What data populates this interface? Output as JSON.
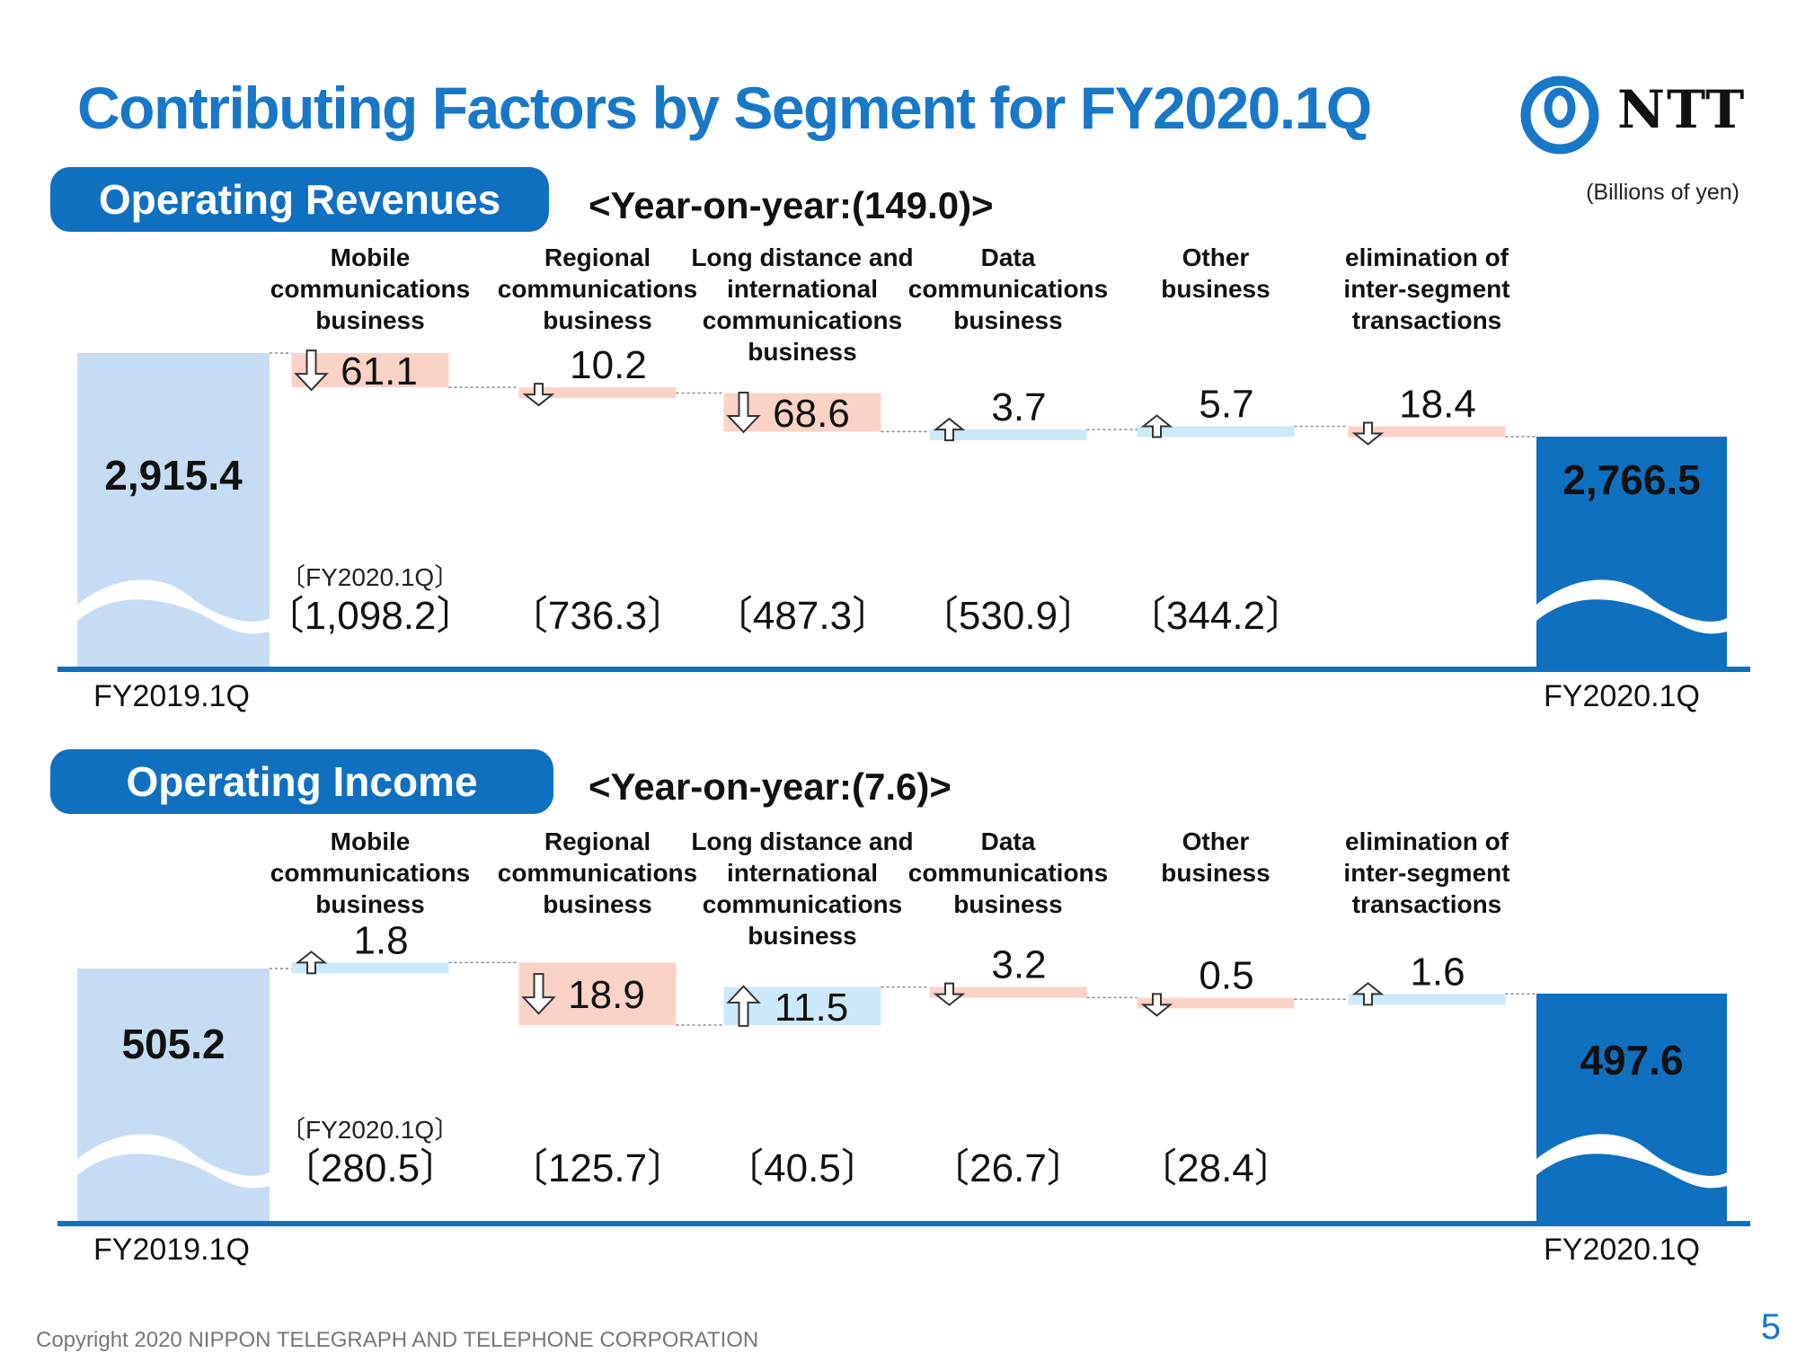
{
  "header": {
    "title": "Contributing Factors by Segment for FY2020.1Q",
    "logo_text": "NTT",
    "unit": "(Billions of yen)"
  },
  "revenue_section": {
    "pill": "Operating Revenues",
    "yoy": "<Year-on-year:(149.0)>"
  },
  "income_section": {
    "pill": "Operating Income",
    "yoy": "<Year-on-year:(7.6)>"
  },
  "footer": {
    "copyright": "Copyright 2020 NIPPON TELEGRAPH AND TELEPHONE CORPORATION",
    "page": "5"
  },
  "colors": {
    "brand_blue": "#1878c8",
    "start_bar": "#c6dcf5",
    "end_bar": "#1070c0",
    "increase": "#cce8fb",
    "decrease": "#fbd2c6"
  },
  "chart_data": [
    {
      "type": "waterfall",
      "title": "Operating Revenues",
      "start": {
        "label": "FY2019.1Q",
        "value": 2915.4,
        "display": "2,915.4"
      },
      "end": {
        "label": "FY2020.1Q",
        "value": 2766.5,
        "display": "2,766.5"
      },
      "fy_label": "〔FY2020.1Q〕",
      "steps": [
        {
          "category": [
            "Mobile",
            "communications",
            "business"
          ],
          "change": -61.1,
          "display": "61.1",
          "fy2020_value": "〔1,098.2〕"
        },
        {
          "category": [
            "Regional",
            "communications",
            "business"
          ],
          "change": -10.2,
          "display": "10.2",
          "fy2020_value": "〔736.3〕"
        },
        {
          "category": [
            "Long distance and",
            "international",
            "communications",
            "business"
          ],
          "change": -68.6,
          "display": "68.6",
          "fy2020_value": "〔487.3〕"
        },
        {
          "category": [
            "Data",
            "communications",
            "business"
          ],
          "change": 3.7,
          "display": "3.7",
          "fy2020_value": "〔530.9〕"
        },
        {
          "category": [
            "Other",
            "business"
          ],
          "change": 5.7,
          "display": "5.7",
          "fy2020_value": "〔344.2〕"
        },
        {
          "category": [
            "elimination of",
            "inter-segment",
            "transactions"
          ],
          "change": -18.4,
          "display": "18.4",
          "fy2020_value": ""
        }
      ]
    },
    {
      "type": "waterfall",
      "title": "Operating Income",
      "start": {
        "label": "FY2019.1Q",
        "value": 505.2,
        "display": "505.2"
      },
      "end": {
        "label": "FY2020.1Q",
        "value": 497.6,
        "display": "497.6"
      },
      "fy_label": "〔FY2020.1Q〕",
      "steps": [
        {
          "category": [
            "Mobile",
            "communications",
            "business"
          ],
          "change": 1.8,
          "display": "1.8",
          "fy2020_value": "〔280.5〕"
        },
        {
          "category": [
            "Regional",
            "communications",
            "business"
          ],
          "change": -18.9,
          "display": "18.9",
          "fy2020_value": "〔125.7〕"
        },
        {
          "category": [
            "Long distance and",
            "international",
            "communications",
            "business"
          ],
          "change": 11.5,
          "display": "11.5",
          "fy2020_value": "〔40.5〕"
        },
        {
          "category": [
            "Data",
            "communications",
            "business"
          ],
          "change": -3.2,
          "display": "3.2",
          "fy2020_value": "〔26.7〕"
        },
        {
          "category": [
            "Other",
            "business"
          ],
          "change": -0.5,
          "display": "0.5",
          "fy2020_value": "〔28.4〕"
        },
        {
          "category": [
            "elimination of",
            "inter-segment",
            "transactions"
          ],
          "change": 1.6,
          "display": "1.6",
          "fy2020_value": ""
        }
      ]
    }
  ]
}
